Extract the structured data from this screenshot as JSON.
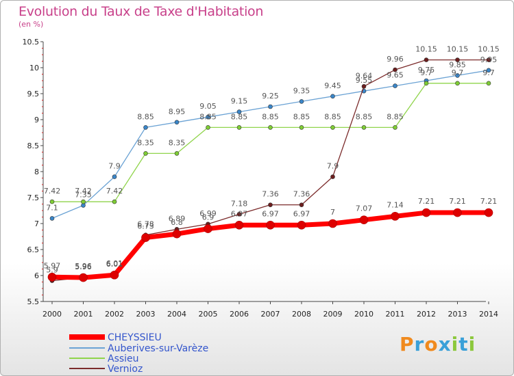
{
  "title": "Evolution du Taux de Taxe d'Habitation",
  "unit_label": "(en %)",
  "logo_text": "Proxiti",
  "colors": {
    "title": "#c8408a",
    "cheyssieu": "#ff0000",
    "auberives": "#6aa2d4",
    "assieu": "#8fd44a",
    "vernioz": "#7b2b2b"
  },
  "chart_data": {
    "type": "line",
    "title": "Evolution du Taux de Taxe d'Habitation",
    "ylabel": "(en %)",
    "xlabel": "",
    "ylim": [
      5.5,
      10.5
    ],
    "yticks": [
      "5.5",
      "6",
      "6.5",
      "7",
      "7.5",
      "8",
      "8.5",
      "9",
      "9.5",
      "10",
      "10.5"
    ],
    "x": [
      "2000",
      "2001",
      "2002",
      "2003",
      "2004",
      "2005",
      "2006",
      "2007",
      "2008",
      "2009",
      "2010",
      "2011",
      "2012",
      "2013",
      "2014"
    ],
    "grid": false,
    "legend": "bottom-left",
    "series": [
      {
        "name": "CHEYSSIEU",
        "values": [
          5.97,
          5.96,
          6.01,
          6.73,
          6.8,
          6.9,
          6.97,
          6.97,
          6.97,
          7,
          7.07,
          7.14,
          7.21,
          7.21,
          7.21
        ]
      },
      {
        "name": "Auberives-sur-Varèze",
        "values": [
          7.1,
          7.35,
          7.9,
          8.85,
          8.95,
          9.05,
          9.15,
          9.25,
          9.35,
          9.45,
          9.55,
          9.65,
          9.75,
          9.85,
          9.95
        ]
      },
      {
        "name": "Assieu",
        "values": [
          7.42,
          7.42,
          7.42,
          8.35,
          8.35,
          8.85,
          8.85,
          8.85,
          8.85,
          8.85,
          8.85,
          8.85,
          9.7,
          9.7,
          9.7
        ]
      },
      {
        "name": "Vernioz",
        "values": [
          5.9,
          5.96,
          6.01,
          6.78,
          6.89,
          6.99,
          7.18,
          7.36,
          7.36,
          7.9,
          9.64,
          9.96,
          10.15,
          10.15,
          10.15
        ]
      }
    ]
  }
}
